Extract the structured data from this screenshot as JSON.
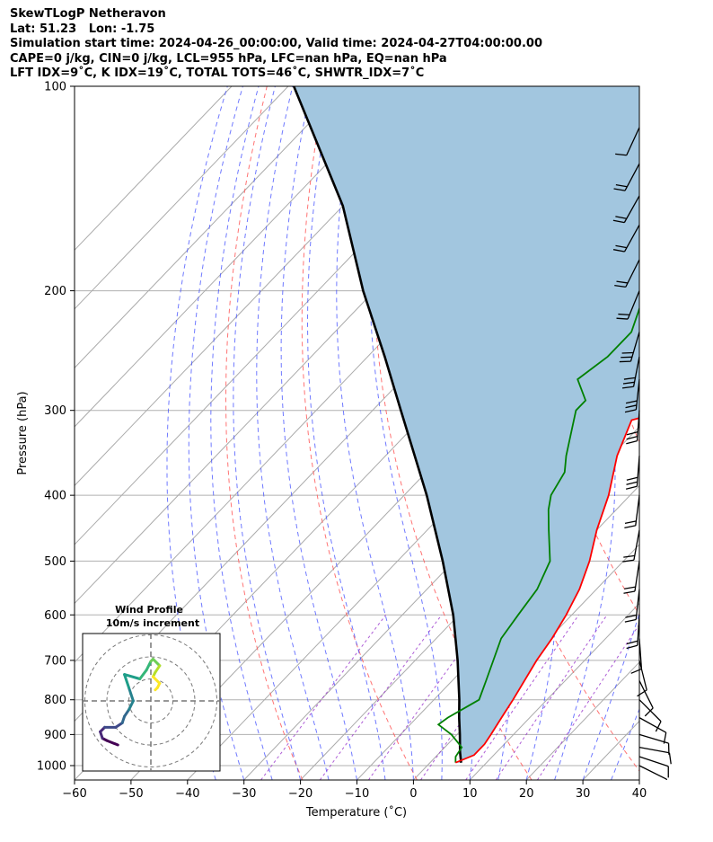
{
  "header": {
    "line1": "SkewTLogP Netheravon",
    "line2": "Lat: 51.23   Lon: -1.75",
    "line3": "Simulation start time: 2024-04-26_00:00:00, Valid time: 2024-04-27T04:00:00.00",
    "line4": "CAPE=0 j/kg, CIN=0 j/kg, LCL=955 hPa, LFC=nan hPa, EQ=nan hPa",
    "line5": "LFT IDX=9˚C, K IDX=19˚C, TOTAL TOTS=46˚C, SHWTR_IDX=7˚C"
  },
  "chart_data": [
    {
      "type": "skewt-logp",
      "xlabel": "Temperature (˚C)",
      "ylabel": "Pressure (hPa)",
      "xlim": [
        -60,
        40
      ],
      "ylim": [
        1050,
        100
      ],
      "x_ticks": [
        "−60",
        "−50",
        "−40",
        "−30",
        "−20",
        "−10",
        "0",
        "10",
        "20",
        "30",
        "40"
      ],
      "y_ticks": [
        "100",
        "200",
        "300",
        "400",
        "500",
        "600",
        "700",
        "800",
        "900",
        "1000"
      ],
      "grid": true,
      "colors": {
        "temperature": "#ff0000",
        "dewpoint": "#008000",
        "parcel": "#000000",
        "fill": "#a2c6df",
        "dry_adiabats": "#ff5a5a",
        "moist_adiabats": "#3f4cff",
        "mixing_ratio": "#9933cc",
        "isotherms": "#aaaaaa"
      },
      "series": [
        {
          "name": "Temperature",
          "points": [
            {
              "p": 990,
              "t": 4.5
            },
            {
              "p": 965,
              "t": 6.5
            },
            {
              "p": 930,
              "t": 6.5
            },
            {
              "p": 900,
              "t": 6.0
            },
            {
              "p": 850,
              "t": 5.0
            },
            {
              "p": 800,
              "t": 4.0
            },
            {
              "p": 700,
              "t": 1.5
            },
            {
              "p": 650,
              "t": 0.5
            },
            {
              "p": 600,
              "t": -1.0
            },
            {
              "p": 550,
              "t": -3.0
            },
            {
              "p": 500,
              "t": -6.0
            },
            {
              "p": 450,
              "t": -10.0
            },
            {
              "p": 400,
              "t": -13.8
            },
            {
              "p": 350,
              "t": -19.0
            },
            {
              "p": 310,
              "t": -22.5
            },
            {
              "p": 290,
              "t": -13.0
            },
            {
              "p": 250,
              "t": -5.0
            },
            {
              "p": 220,
              "t": 3.0
            },
            {
              "p": 200,
              "t": 8.0
            },
            {
              "p": 180,
              "t": 15.0
            },
            {
              "p": 160,
              "t": 21.5
            },
            {
              "p": 140,
              "t": 27.0
            },
            {
              "p": 120,
              "t": 31.0
            },
            {
              "p": 100,
              "t": 35.5
            }
          ]
        },
        {
          "name": "Dewpoint",
          "points": [
            {
              "p": 990,
              "t": 4.5
            },
            {
              "p": 970,
              "t": 3.5
            },
            {
              "p": 940,
              "t": 3.0
            },
            {
              "p": 900,
              "t": -1.0
            },
            {
              "p": 870,
              "t": -5.0
            },
            {
              "p": 850,
              "t": -4.5
            },
            {
              "p": 800,
              "t": -2.0
            },
            {
              "p": 750,
              "t": -4.0
            },
            {
              "p": 650,
              "t": -8.5
            },
            {
              "p": 600,
              "t": -9.5
            },
            {
              "p": 550,
              "t": -10.5
            },
            {
              "p": 500,
              "t": -13.0
            },
            {
              "p": 450,
              "t": -18.5
            },
            {
              "p": 420,
              "t": -22.0
            },
            {
              "p": 400,
              "t": -24.0
            },
            {
              "p": 370,
              "t": -25.5
            },
            {
              "p": 350,
              "t": -28.0
            },
            {
              "p": 320,
              "t": -31.5
            },
            {
              "p": 300,
              "t": -34.0
            },
            {
              "p": 290,
              "t": -34.0
            },
            {
              "p": 270,
              "t": -39.0
            },
            {
              "p": 250,
              "t": -37.5
            },
            {
              "p": 230,
              "t": -37.5
            },
            {
              "p": 200,
              "t": -42.0
            },
            {
              "p": 185,
              "t": -40.5
            },
            {
              "p": 165,
              "t": -42.0
            },
            {
              "p": 150,
              "t": -41.0
            },
            {
              "p": 130,
              "t": -35.0
            },
            {
              "p": 115,
              "t": -32.0
            },
            {
              "p": 100,
              "t": -29.0
            }
          ]
        },
        {
          "name": "Parcel",
          "points": [
            {
              "p": 990,
              "t": 5.5
            },
            {
              "p": 955,
              "t": 3.5
            },
            {
              "p": 900,
              "t": 0.5
            },
            {
              "p": 850,
              "t": -2.5
            },
            {
              "p": 800,
              "t": -5.5
            },
            {
              "p": 700,
              "t": -12.5
            },
            {
              "p": 600,
              "t": -21.0
            },
            {
              "p": 500,
              "t": -32.0
            },
            {
              "p": 400,
              "t": -46.0
            },
            {
              "p": 300,
              "t": -65.0
            },
            {
              "p": 250,
              "t": -77.0
            },
            {
              "p": 200,
              "t": -92.0
            },
            {
              "p": 150,
              "t": -110.0
            },
            {
              "p": 100,
              "t": -139.0
            }
          ]
        }
      ],
      "wind_barbs": [
        {
          "p": 1000,
          "u": -12,
          "v": 6
        },
        {
          "p": 970,
          "u": -12,
          "v": 4
        },
        {
          "p": 940,
          "u": -11,
          "v": 2
        },
        {
          "p": 900,
          "u": -10,
          "v": 3
        },
        {
          "p": 850,
          "u": -9,
          "v": 5
        },
        {
          "p": 800,
          "u": -7,
          "v": 7
        },
        {
          "p": 750,
          "u": -5,
          "v": 10
        },
        {
          "p": 700,
          "u": -3,
          "v": 12
        },
        {
          "p": 650,
          "u": -1,
          "v": 14
        },
        {
          "p": 600,
          "u": 1,
          "v": 16
        },
        {
          "p": 550,
          "u": 2,
          "v": 18
        },
        {
          "p": 500,
          "u": 3,
          "v": 20
        },
        {
          "p": 450,
          "u": 4,
          "v": 22
        },
        {
          "p": 400,
          "u": 3,
          "v": 24
        },
        {
          "p": 350,
          "u": 2,
          "v": 26
        },
        {
          "p": 300,
          "u": 2,
          "v": 28
        },
        {
          "p": 270,
          "u": 3,
          "v": 28
        },
        {
          "p": 250,
          "u": 5,
          "v": 26
        },
        {
          "p": 230,
          "u": 7,
          "v": 24
        },
        {
          "p": 200,
          "u": 9,
          "v": 22
        },
        {
          "p": 180,
          "u": 10,
          "v": 20
        },
        {
          "p": 160,
          "u": 10,
          "v": 18
        },
        {
          "p": 145,
          "u": 9,
          "v": 16
        },
        {
          "p": 130,
          "u": 8,
          "v": 15
        },
        {
          "p": 115,
          "u": 6,
          "v": 13
        }
      ]
    },
    {
      "type": "hodograph",
      "title": "Wind Profile",
      "subtitle": "10m/s increment",
      "rings_ms": [
        10,
        20,
        30
      ],
      "series": [
        {
          "u": -15,
          "v": 10
        },
        {
          "u": -20,
          "v": 12
        },
        {
          "u": -22,
          "v": 13
        },
        {
          "u": -23,
          "v": 16
        },
        {
          "u": -21,
          "v": 18
        },
        {
          "u": -16,
          "v": 18
        },
        {
          "u": -13,
          "v": 20
        },
        {
          "u": -12,
          "v": 23
        },
        {
          "u": -10,
          "v": 26
        },
        {
          "u": -8,
          "v": 30
        },
        {
          "u": -10,
          "v": 36
        },
        {
          "u": -12,
          "v": 42
        },
        {
          "u": -5,
          "v": 40
        },
        {
          "u": -2,
          "v": 44
        },
        {
          "u": 0,
          "v": 48
        },
        {
          "u": 1,
          "v": 49
        },
        {
          "u": 4,
          "v": 46
        },
        {
          "u": 2,
          "v": 43
        },
        {
          "u": 1,
          "v": 41
        },
        {
          "u": 4,
          "v": 38
        },
        {
          "u": 3,
          "v": 36
        },
        {
          "u": 2,
          "v": 35
        }
      ]
    }
  ]
}
